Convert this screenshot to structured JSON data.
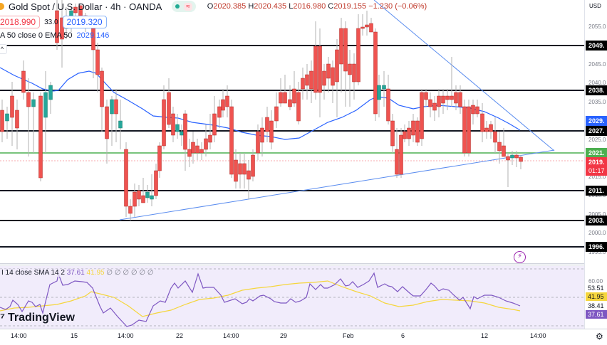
{
  "header": {
    "symbol_title": "Gold Spot / U.S. Dollar · 4h · OANDA",
    "status_icons": [
      "market-open-dot",
      "delayed-data-icon"
    ],
    "ohlc": {
      "open_label": "O",
      "open": "2020.385",
      "high_label": "H",
      "high": "2020.435",
      "low_label": "L",
      "low": "2016.980",
      "close_label": "C",
      "close": "2019.155",
      "change": "−1.230 (−0.06%)"
    },
    "sell_price": "2018.990",
    "spread": "33.0",
    "buy_price": "2019.320",
    "indicator_label": "A 50 close 0 EMA 50",
    "indicator_value": "2029.146"
  },
  "price_axis": {
    "currency": "USD",
    "ticks": [
      "2055.0",
      "2045.0",
      "2040.0",
      "2035.0",
      "2025.0",
      "2015.0",
      "2010.0",
      "2005.0",
      "2000.0",
      "1995.0"
    ],
    "level_labels": [
      {
        "text": "2049.",
        "color": "#000000"
      },
      {
        "text": "2038.",
        "color": "#000000"
      },
      {
        "text": "2029.",
        "color": "#2962ff"
      },
      {
        "text": "2027.",
        "color": "#000000"
      },
      {
        "text": "2021.",
        "color": "#4caf50"
      },
      {
        "text": "2019.",
        "color": "#f23645"
      },
      {
        "text": "01:17",
        "color": "#f23645"
      },
      {
        "text": "2011.",
        "color": "#000000"
      },
      {
        "text": "2003.",
        "color": "#000000"
      },
      {
        "text": "1996.",
        "color": "#000000"
      }
    ]
  },
  "rsi": {
    "legend_label": "I 14 close SMA 14 2",
    "rsi_value": "37.61",
    "sma_value": "41.95",
    "empty_values": "∅ ∅ ∅ ∅ ∅ ∅",
    "axis_labels": [
      "60.00",
      "53.51",
      "41.95",
      "38.41",
      "37.61"
    ]
  },
  "time_axis": {
    "ticks": [
      "14:00",
      "15",
      "14:00",
      "22",
      "14:00",
      "29",
      "Feb",
      "6",
      "12",
      "14:00"
    ]
  },
  "branding": {
    "logo_text": "TradingView"
  },
  "colors": {
    "up": "#26a69a",
    "down": "#ef5350",
    "ema": "#2962ff",
    "rsi": "#7e57c2",
    "rsi_sma": "#f5d63d",
    "support_green": "#4caf50"
  },
  "chart_data": {
    "type": "candlestick",
    "title": "Gold Spot / U.S. Dollar · 4h · OANDA",
    "xlabel": "",
    "ylabel": "USD",
    "ylim": [
      1993,
      2059
    ],
    "x_ticks": [
      "14:00",
      "15",
      "14:00",
      "22",
      "14:00",
      "29",
      "Feb",
      "6",
      "12",
      "14:00"
    ],
    "horizontal_levels": [
      2049.5,
      2038.0,
      2027.5,
      2021.5,
      2011.5,
      2003.5,
      1996.5
    ],
    "current_price": 2019.155,
    "ema_50_current": 2029.146,
    "trendlines": [
      {
        "name": "ascending support",
        "from": [
          "Jan 17",
          2003.5
        ],
        "to": [
          "Feb 13",
          2021.5
        ]
      },
      {
        "name": "descending resistance",
        "from": [
          "Feb 1",
          2059
        ],
        "to": [
          "Feb 13",
          2021.5
        ]
      }
    ],
    "indicators": {
      "RSI_14": {
        "current": 37.61,
        "sma": 41.95,
        "levels": [
          60.0,
          53.51,
          38.41
        ]
      }
    }
  }
}
